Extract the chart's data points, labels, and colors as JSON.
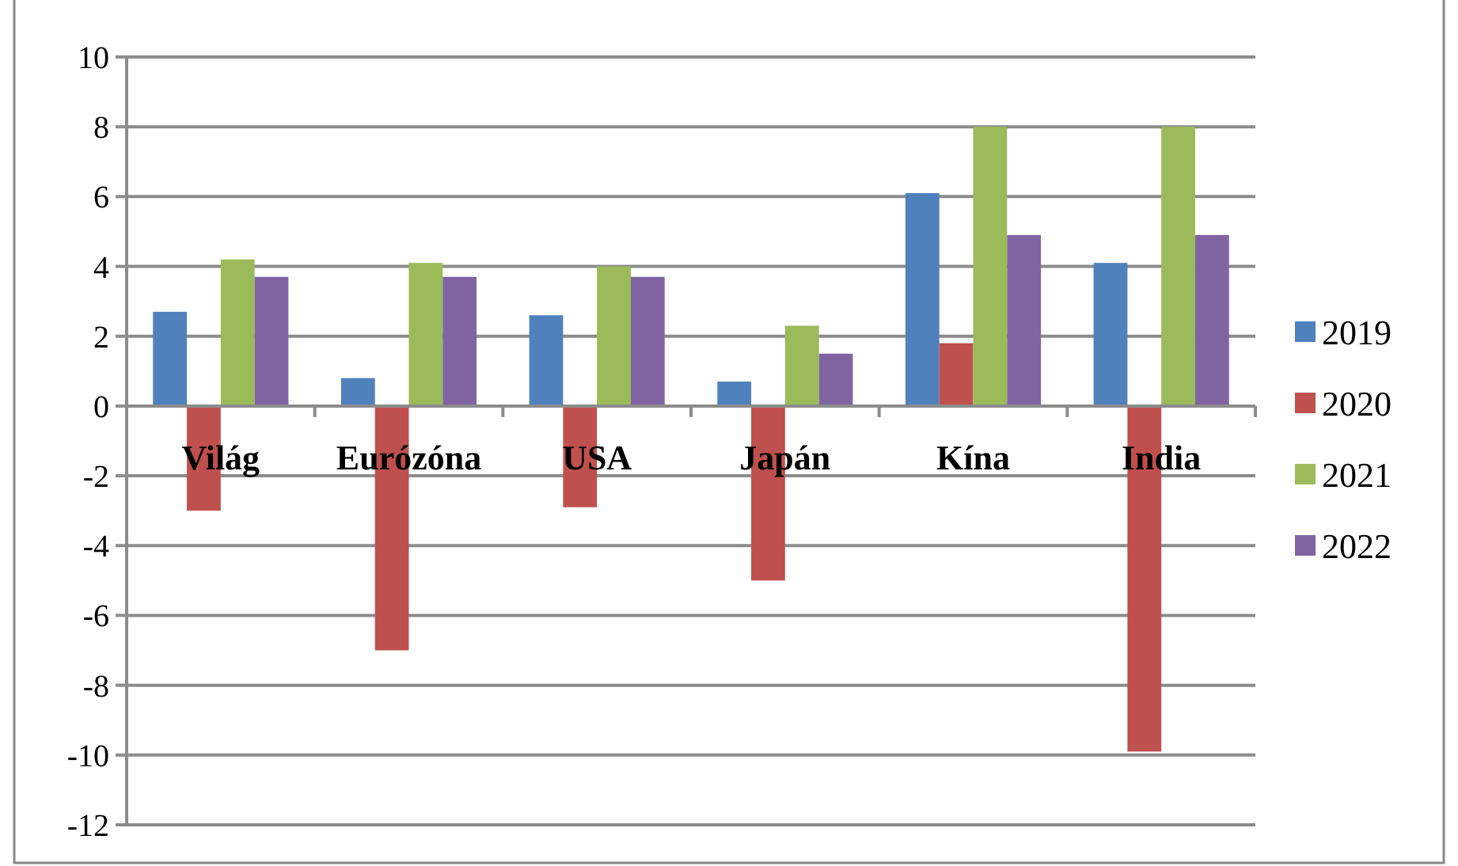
{
  "chart_data": {
    "type": "bar",
    "categories": [
      "Világ",
      "Eurózóna",
      "USA",
      "Japán",
      "Kína",
      "India"
    ],
    "series": [
      {
        "name": "2019",
        "color": "#4f81bd",
        "values": [
          2.7,
          0.8,
          2.6,
          0.7,
          6.1,
          4.1
        ]
      },
      {
        "name": "2020",
        "color": "#c0504d",
        "values": [
          -3.0,
          -7.0,
          -2.9,
          -5.0,
          1.8,
          -9.9
        ]
      },
      {
        "name": "2021",
        "color": "#9bbb59",
        "values": [
          4.2,
          4.1,
          4.0,
          2.3,
          8.0,
          8.0
        ]
      },
      {
        "name": "2022",
        "color": "#8064a2",
        "values": [
          3.7,
          3.7,
          3.7,
          1.5,
          4.9,
          4.9
        ]
      }
    ],
    "ylim": [
      -12,
      10
    ],
    "yticks": [
      -12,
      -10,
      -8,
      -6,
      -4,
      -2,
      0,
      2,
      4,
      6,
      8,
      10
    ],
    "grid": "y",
    "legend": "right"
  }
}
